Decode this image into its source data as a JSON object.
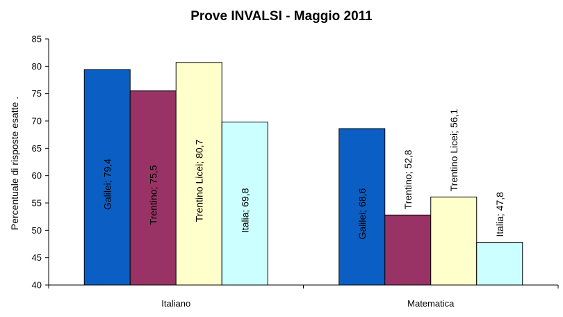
{
  "chart_data": {
    "type": "bar",
    "title": "Prove INVALSI - Maggio 2011",
    "xlabel": "",
    "ylabel": "Percentuale di risposte esatte .",
    "ylim": [
      40,
      85
    ],
    "yticks": [
      40,
      45,
      50,
      55,
      60,
      65,
      70,
      75,
      80,
      85
    ],
    "categories": [
      "Italiano",
      "Matematica"
    ],
    "grid": false,
    "legend": "none",
    "series": [
      {
        "name": "Galilei",
        "color": "#0b5fc4",
        "values": [
          79.4,
          68.6
        ],
        "labels": [
          "Galilei; 79,4",
          "Galilei; 68,6"
        ]
      },
      {
        "name": "Trentino",
        "color": "#993366",
        "values": [
          75.5,
          52.8
        ],
        "labels": [
          "Trentino; 75,5",
          "Trentino; 52,8"
        ]
      },
      {
        "name": "Trentino Licei",
        "color": "#ffffcc",
        "values": [
          80.7,
          56.1
        ],
        "labels": [
          "Trentino Licei; 80,7",
          "Trentino Licei; 56,1"
        ]
      },
      {
        "name": "Italia",
        "color": "#ccffff",
        "values": [
          69.8,
          47.8
        ],
        "labels": [
          "Italia; 69,8",
          "Italia; 47,8"
        ]
      }
    ]
  }
}
